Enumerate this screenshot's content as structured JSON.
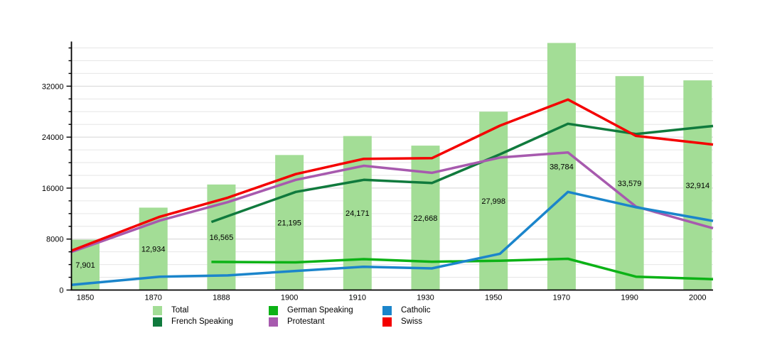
{
  "chart_data": {
    "type": "bar+line",
    "title": "",
    "categories": [
      "1850",
      "1870",
      "1888",
      "1900",
      "1910",
      "1930",
      "1950",
      "1970",
      "1990",
      "2000"
    ],
    "y_axis": {
      "ticks": [
        0,
        8000,
        16000,
        24000,
        32000
      ],
      "tick_labels": [
        "0",
        "8000",
        "16000",
        "24000",
        "32000"
      ],
      "minor_step": 2000,
      "grid_max": 38000,
      "max_value": 38784
    },
    "bars": {
      "name": "Total",
      "color": "#a3dd96",
      "values": [
        7901,
        12934,
        16565,
        21195,
        24171,
        22668,
        27998,
        38784,
        33579,
        32914
      ],
      "labels": [
        "7,901",
        "12,934",
        "16,565",
        "21,195",
        "24,171",
        "22,668",
        "27,998",
        "38,784",
        "33,579",
        "32,914"
      ]
    },
    "lines": [
      {
        "name": "French Speaking",
        "color": "#107a3d",
        "start_index": 2,
        "values": [
          11600,
          15400,
          17300,
          16800,
          21300,
          26100,
          24500,
          25600
        ]
      },
      {
        "name": "German Speaking",
        "color": "#0cb216",
        "start_index": 2,
        "values": [
          4400,
          4350,
          4850,
          4450,
          4600,
          4900,
          2100,
          1750
        ]
      },
      {
        "name": "Protestant",
        "color": "#a75aae",
        "start_index": 0,
        "values": [
          7100,
          10900,
          13800,
          17300,
          19500,
          18400,
          20800,
          21600,
          13100,
          10100
        ]
      },
      {
        "name": "Catholic",
        "color": "#1b85cb",
        "start_index": 0,
        "values": [
          1100,
          2100,
          2300,
          3000,
          3650,
          3400,
          5700,
          15400,
          13000,
          11100
        ]
      },
      {
        "name": "Swiss",
        "color": "#f40000",
        "start_index": 0,
        "values": [
          7400,
          11500,
          14500,
          18200,
          20600,
          20700,
          25800,
          29900,
          24200,
          23000
        ]
      }
    ],
    "legend_columns": [
      [
        {
          "label": "Total",
          "color": "#a3dd96"
        },
        {
          "label": "French Speaking",
          "color": "#107a3d"
        }
      ],
      [
        {
          "label": "German Speaking",
          "color": "#0cb216"
        },
        {
          "label": "Protestant",
          "color": "#a75aae"
        }
      ],
      [
        {
          "label": "Catholic",
          "color": "#1b85cb"
        },
        {
          "label": "Swiss",
          "color": "#f40000"
        }
      ]
    ],
    "colors": {
      "axis": "#000000",
      "grid_major": "#d4d4d4",
      "grid_minor": "#e6e6e6",
      "label_text": "#000000"
    }
  }
}
